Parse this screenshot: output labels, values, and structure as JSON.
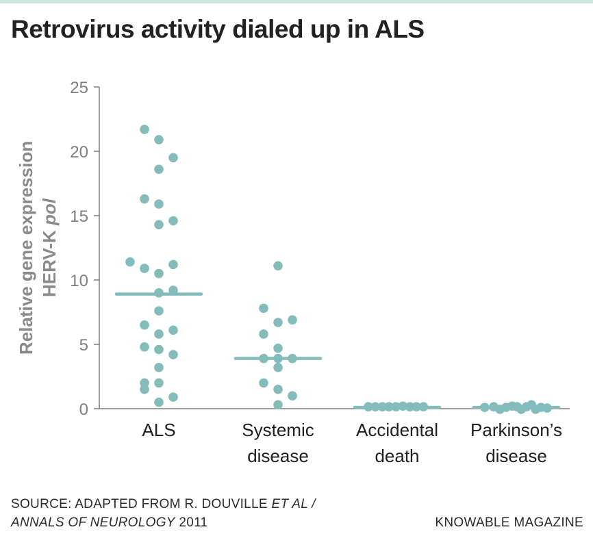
{
  "colors": {
    "accent": "#84bcbc",
    "top_rule": "#cfe6e4",
    "axis": "#7a7a7a"
  },
  "header": {
    "title": "Retrovirus activity dialed up in ALS"
  },
  "chart_data": {
    "type": "scatter",
    "title": "Retrovirus activity dialed up in ALS",
    "ylabel_line1": "Relative gene expression",
    "ylabel_line2_prefix": "HERV-K ",
    "ylabel_line2_italic": "pol",
    "ylim": [
      0,
      25
    ],
    "yticks": [
      0,
      5,
      10,
      15,
      20,
      25
    ],
    "categories": [
      {
        "line1": "ALS",
        "line2": ""
      },
      {
        "line1": "Systemic",
        "line2": "disease"
      },
      {
        "line1": "Accidental",
        "line2": "death"
      },
      {
        "line1": "Parkinson’s",
        "line2": "disease"
      }
    ],
    "series": [
      {
        "name": "ALS",
        "median": 8.9,
        "points": [
          {
            "offset": -0.35,
            "value": 21.7
          },
          {
            "offset": 0.0,
            "value": 20.9
          },
          {
            "offset": 0.0,
            "value": 18.6
          },
          {
            "offset": 0.35,
            "value": 19.5
          },
          {
            "offset": -0.35,
            "value": 16.3
          },
          {
            "offset": 0.0,
            "value": 15.9
          },
          {
            "offset": 0.0,
            "value": 14.3
          },
          {
            "offset": 0.35,
            "value": 14.6
          },
          {
            "offset": -0.7,
            "value": 11.4
          },
          {
            "offset": 0.35,
            "value": 11.2
          },
          {
            "offset": -0.35,
            "value": 10.9
          },
          {
            "offset": 0.0,
            "value": 10.5
          },
          {
            "offset": 0.35,
            "value": 9.2
          },
          {
            "offset": 0.0,
            "value": 9.0
          },
          {
            "offset": 0.0,
            "value": 7.6
          },
          {
            "offset": -0.35,
            "value": 6.5
          },
          {
            "offset": 0.35,
            "value": 6.1
          },
          {
            "offset": 0.0,
            "value": 5.8
          },
          {
            "offset": -0.35,
            "value": 4.8
          },
          {
            "offset": 0.0,
            "value": 4.6
          },
          {
            "offset": 0.35,
            "value": 4.2
          },
          {
            "offset": 0.0,
            "value": 3.2
          },
          {
            "offset": -0.35,
            "value": 2.0
          },
          {
            "offset": 0.0,
            "value": 2.0
          },
          {
            "offset": -0.35,
            "value": 1.5
          },
          {
            "offset": 0.35,
            "value": 0.9
          },
          {
            "offset": 0.0,
            "value": 0.5
          }
        ]
      },
      {
        "name": "Systemic disease",
        "median": 3.9,
        "points": [
          {
            "offset": 0.0,
            "value": 11.1
          },
          {
            "offset": -0.35,
            "value": 7.8
          },
          {
            "offset": 0.0,
            "value": 6.7
          },
          {
            "offset": 0.35,
            "value": 6.9
          },
          {
            "offset": -0.35,
            "value": 5.8
          },
          {
            "offset": 0.0,
            "value": 4.7
          },
          {
            "offset": -0.35,
            "value": 3.9
          },
          {
            "offset": 0.0,
            "value": 3.9
          },
          {
            "offset": 0.35,
            "value": 3.9
          },
          {
            "offset": 0.0,
            "value": 3.2
          },
          {
            "offset": -0.35,
            "value": 2.0
          },
          {
            "offset": 0.0,
            "value": 1.5
          },
          {
            "offset": 0.35,
            "value": 1.0
          },
          {
            "offset": 0.0,
            "value": 0.3
          }
        ]
      },
      {
        "name": "Accidental death",
        "median": 0.1,
        "points": [
          {
            "offset": -0.7,
            "value": 0.15
          },
          {
            "offset": -0.53,
            "value": 0.15
          },
          {
            "offset": -0.36,
            "value": 0.15
          },
          {
            "offset": -0.2,
            "value": 0.15
          },
          {
            "offset": -0.03,
            "value": 0.15
          },
          {
            "offset": 0.14,
            "value": 0.2
          },
          {
            "offset": 0.31,
            "value": 0.15
          },
          {
            "offset": 0.47,
            "value": 0.15
          },
          {
            "offset": 0.64,
            "value": 0.15
          }
        ]
      },
      {
        "name": "Parkinson’s disease",
        "median": 0.1,
        "points": [
          {
            "offset": -0.77,
            "value": 0.1
          },
          {
            "offset": -0.55,
            "value": 0.15
          },
          {
            "offset": -0.4,
            "value": -0.05
          },
          {
            "offset": -0.25,
            "value": 0.1
          },
          {
            "offset": -0.1,
            "value": 0.2
          },
          {
            "offset": 0.02,
            "value": 0.15
          },
          {
            "offset": 0.12,
            "value": -0.05
          },
          {
            "offset": 0.25,
            "value": 0.15
          },
          {
            "offset": 0.37,
            "value": 0.3
          },
          {
            "offset": 0.47,
            "value": -0.05
          },
          {
            "offset": 0.6,
            "value": 0.1
          },
          {
            "offset": 0.75,
            "value": 0.05
          }
        ]
      }
    ]
  },
  "footer": {
    "source_prefix": "SOURCE: ADAPTED FROM R. DOUVILLE ",
    "source_italic_1": "ET AL /",
    "source_italic_2": "ANNALS OF NEUROLOGY",
    "source_year": " 2011",
    "brand": "KNOWABLE MAGAZINE"
  }
}
